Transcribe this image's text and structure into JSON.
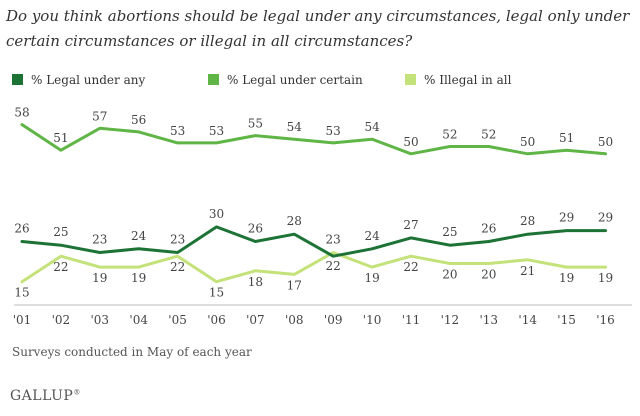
{
  "chart_data": {
    "type": "line",
    "title": "Do you think abortions should be legal under any circumstances, legal only under certain circumstances or illegal in all circumstances?",
    "categories": [
      "'01",
      "'02",
      "'03",
      "'04",
      "'05",
      "'06",
      "'07",
      "'08",
      "'09",
      "'10",
      "'11",
      "'12",
      "'13",
      "'14",
      "'15",
      "'16"
    ],
    "ylim": [
      10,
      62
    ],
    "series": [
      {
        "name": "% Legal under any",
        "color": "#1d7336",
        "values": [
          26,
          25,
          23,
          24,
          23,
          30,
          26,
          28,
          22,
          24,
          27,
          25,
          26,
          28,
          29,
          29
        ]
      },
      {
        "name": "% Legal under certain",
        "color": "#5fb545",
        "values": [
          58,
          51,
          57,
          56,
          53,
          53,
          55,
          54,
          53,
          54,
          50,
          52,
          52,
          50,
          51,
          50
        ]
      },
      {
        "name": "% Illegal in all",
        "color": "#c4e27a",
        "values": [
          15,
          22,
          19,
          19,
          22,
          15,
          18,
          17,
          23,
          19,
          22,
          20,
          20,
          21,
          19,
          19
        ]
      }
    ],
    "note": "Surveys conducted in May of each year",
    "source": "GALLUP"
  }
}
